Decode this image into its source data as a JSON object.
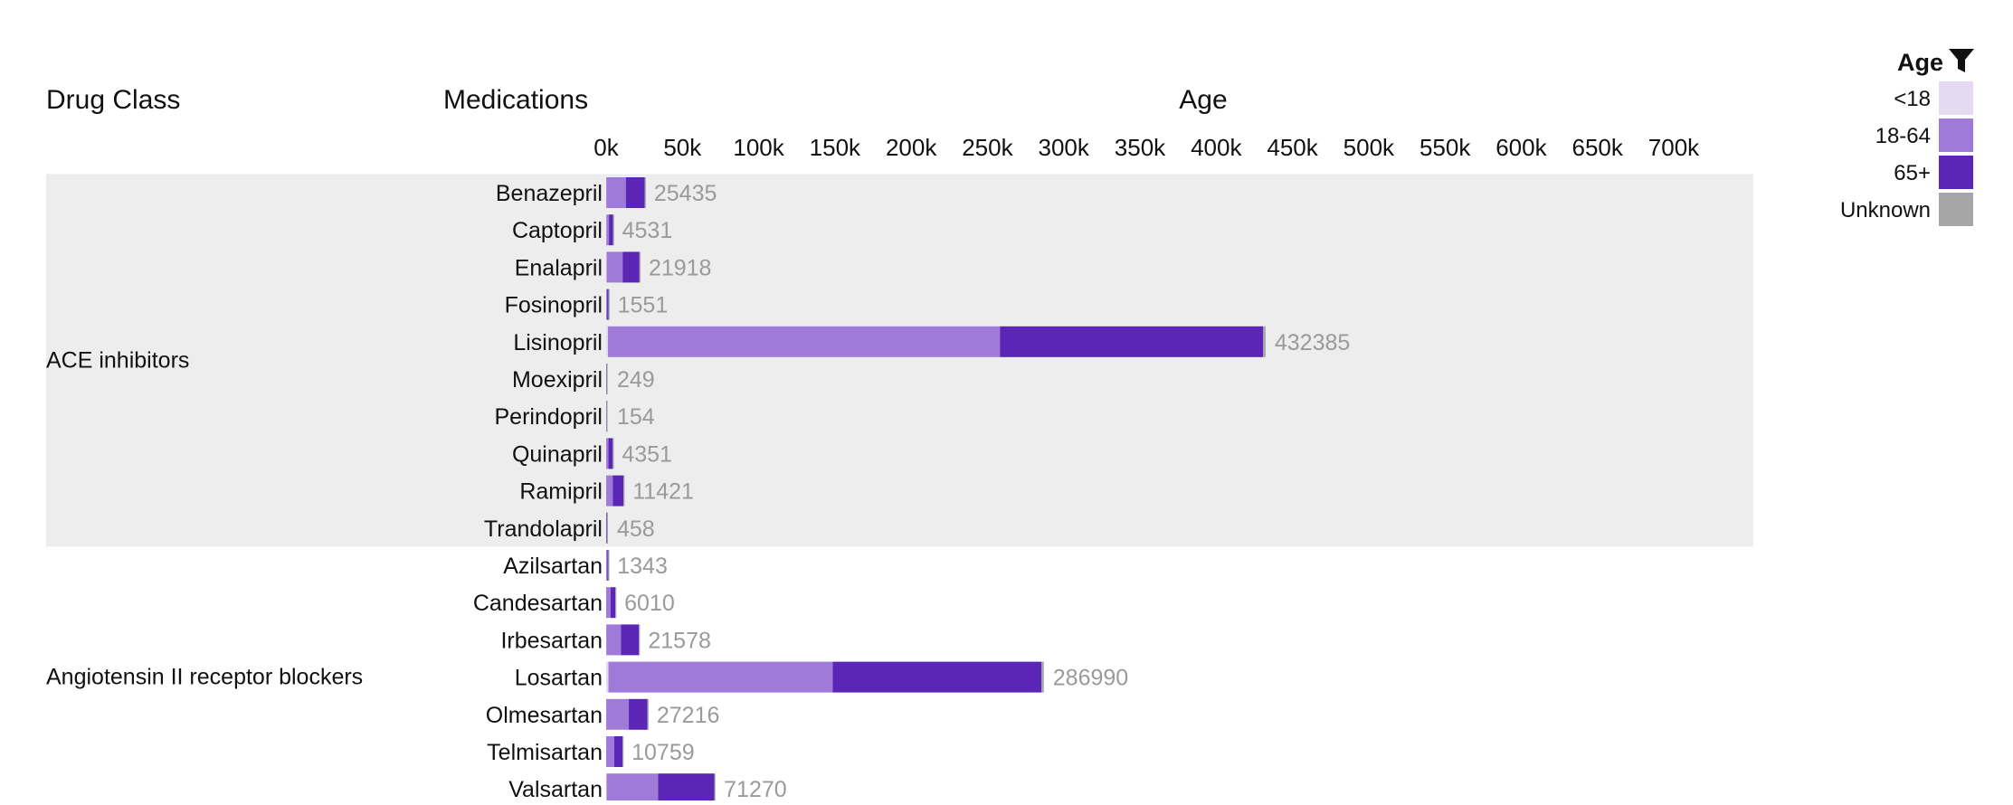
{
  "chart_data": {
    "type": "bar",
    "stacked": true,
    "orientation": "horizontal",
    "headers": {
      "drug_class": "Drug Class",
      "medications": "Medications",
      "age": "Age"
    },
    "x_ticks": [
      {
        "value": 0,
        "label": "0k"
      },
      {
        "value": 50000,
        "label": "50k"
      },
      {
        "value": 100000,
        "label": "100k"
      },
      {
        "value": 150000,
        "label": "150k"
      },
      {
        "value": 200000,
        "label": "200k"
      },
      {
        "value": 250000,
        "label": "250k"
      },
      {
        "value": 300000,
        "label": "300k"
      },
      {
        "value": 350000,
        "label": "350k"
      },
      {
        "value": 400000,
        "label": "400k"
      },
      {
        "value": 450000,
        "label": "450k"
      },
      {
        "value": 500000,
        "label": "500k"
      },
      {
        "value": 550000,
        "label": "550k"
      },
      {
        "value": 600000,
        "label": "600k"
      },
      {
        "value": 650000,
        "label": "650k"
      },
      {
        "value": 700000,
        "label": "700k"
      }
    ],
    "xlim": [
      0,
      700000
    ],
    "legend": {
      "title": "Age",
      "placement": "top-right",
      "entries": [
        {
          "key": "lt18",
          "label": "<18",
          "color": "#e6daf3"
        },
        {
          "key": "a18_64",
          "label": "18-64",
          "color": "#a07ad9"
        },
        {
          "key": "a65",
          "label": "65+",
          "color": "#5b26b6"
        },
        {
          "key": "unknown",
          "label": "Unknown",
          "color": "#a6a6a6"
        }
      ]
    },
    "groups": [
      {
        "name": "ACE inhibitors",
        "shaded": true,
        "rows": [
          {
            "medication": "Benazepril",
            "total": "25435",
            "segments": {
              "lt18": 100,
              "a18_64": 12800,
              "a65": 12400,
              "unknown": 135
            }
          },
          {
            "medication": "Captopril",
            "total": "4531",
            "segments": {
              "lt18": 150,
              "a18_64": 1700,
              "a65": 2650,
              "unknown": 31
            }
          },
          {
            "medication": "Enalapril",
            "total": "21918",
            "segments": {
              "lt18": 300,
              "a18_64": 10500,
              "a65": 11000,
              "unknown": 118
            }
          },
          {
            "medication": "Fosinopril",
            "total": "1551",
            "segments": {
              "lt18": 10,
              "a18_64": 650,
              "a65": 885,
              "unknown": 6
            }
          },
          {
            "medication": "Lisinopril",
            "total": "432385",
            "segments": {
              "lt18": 1200,
              "a18_64": 257000,
              "a65": 172500,
              "unknown": 1685
            }
          },
          {
            "medication": "Moexipril",
            "total": "249",
            "segments": {
              "lt18": 0,
              "a18_64": 100,
              "a65": 148,
              "unknown": 1
            }
          },
          {
            "medication": "Perindopril",
            "total": "154",
            "segments": {
              "lt18": 0,
              "a18_64": 60,
              "a65": 93,
              "unknown": 1
            }
          },
          {
            "medication": "Quinapril",
            "total": "4351",
            "segments": {
              "lt18": 20,
              "a18_64": 1500,
              "a65": 2810,
              "unknown": 21
            }
          },
          {
            "medication": "Ramipril",
            "total": "11421",
            "segments": {
              "lt18": 30,
              "a18_64": 4300,
              "a65": 7040,
              "unknown": 51
            }
          },
          {
            "medication": "Trandolapril",
            "total": "458",
            "segments": {
              "lt18": 0,
              "a18_64": 180,
              "a65": 276,
              "unknown": 2
            }
          }
        ]
      },
      {
        "name": "Angiotensin II receptor blockers",
        "shaded": false,
        "rows": [
          {
            "medication": "Azilsartan",
            "total": "1343",
            "segments": {
              "lt18": 5,
              "a18_64": 780,
              "a65": 552,
              "unknown": 6
            }
          },
          {
            "medication": "Candesartan",
            "total": "6010",
            "segments": {
              "lt18": 20,
              "a18_64": 2900,
              "a65": 3060,
              "unknown": 30
            }
          },
          {
            "medication": "Irbesartan",
            "total": "21578",
            "segments": {
              "lt18": 100,
              "a18_64": 9600,
              "a65": 11760,
              "unknown": 118
            }
          },
          {
            "medication": "Losartan",
            "total": "286990",
            "segments": {
              "lt18": 1500,
              "a18_64": 147000,
              "a65": 137000,
              "unknown": 1490
            }
          },
          {
            "medication": "Olmesartan",
            "total": "27216",
            "segments": {
              "lt18": 50,
              "a18_64": 14800,
              "a65": 12230,
              "unknown": 136
            }
          },
          {
            "medication": "Telmisartan",
            "total": "10759",
            "segments": {
              "lt18": 30,
              "a18_64": 5300,
              "a65": 5380,
              "unknown": 49
            }
          },
          {
            "medication": "Valsartan",
            "total": "71270",
            "segments": {
              "lt18": 300,
              "a18_64": 33800,
              "a65": 36800,
              "unknown": 370
            }
          }
        ]
      }
    ]
  }
}
